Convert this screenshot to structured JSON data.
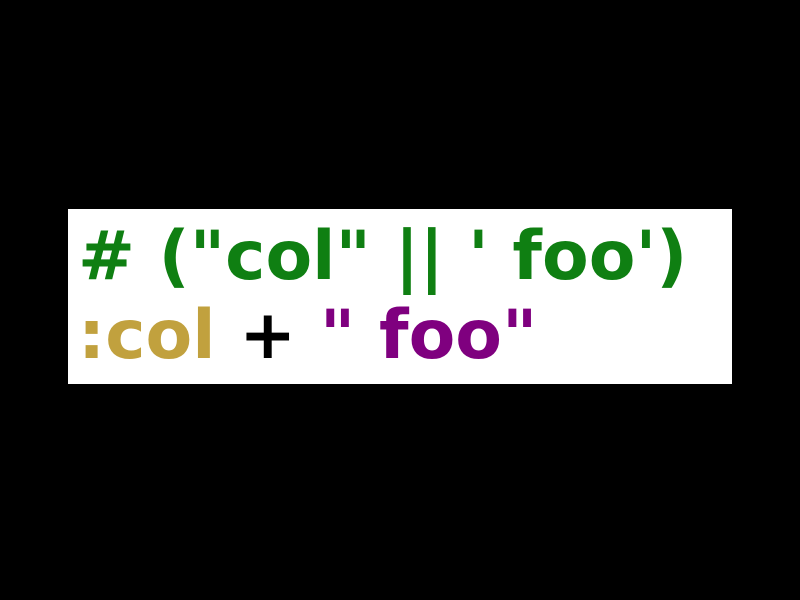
{
  "code": {
    "line1": {
      "comment": "# (\"col\" || ' foo')"
    },
    "line2": {
      "symbol": ":col",
      "space1": " ",
      "operator": "+",
      "space2": " ",
      "string": "\" foo\""
    }
  },
  "colors": {
    "background": "#000000",
    "code_box": "#ffffff",
    "comment": "#0f7f12",
    "symbol": "#c1a13e",
    "operator": "#000000",
    "string": "#7f007f"
  }
}
